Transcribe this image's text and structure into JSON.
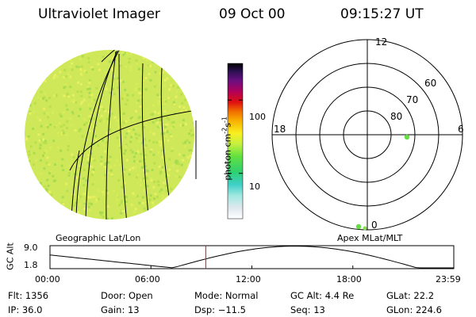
{
  "header": {
    "instrument": "Ultraviolet Imager",
    "date": "09 Oct 00",
    "time": "09:15:27 UT"
  },
  "colorbar": {
    "label": "photon cm",
    "label_sup1": "-2",
    "label_mid": "s",
    "label_sup2": "-1",
    "ticks": [
      {
        "value": 100,
        "label": "100"
      },
      {
        "value": 10,
        "label": "10"
      }
    ],
    "scale": "log"
  },
  "polar_plot": {
    "mlt_labels": {
      "top": "12",
      "left": "18",
      "right": "6",
      "bottom": "0"
    },
    "lat_labels": [
      "60",
      "70",
      "80"
    ]
  },
  "frames": {
    "left_label": "Geographic Lat/Lon",
    "right_label": "Apex MLat/MLT"
  },
  "altitude_plot": {
    "ylabel": "GC Alt",
    "ytick_top": "9.0",
    "ytick_bottom": "1.8",
    "xticks": [
      "00:00",
      "06:00",
      "12:00",
      "18:00",
      "23:59"
    ],
    "current_time_hours": 9.26
  },
  "info": {
    "flt_label": "Flt:",
    "flt_value": "1356",
    "door_label": "Door:",
    "door_value": "Open",
    "mode_label": "Mode:",
    "mode_value": "Normal",
    "gcalt_label": "GC Alt:",
    "gcalt_value": "4.4 Re",
    "glat_label": "GLat:",
    "glat_value": "22.2",
    "ip_label": "IP:",
    "ip_value": "36.0",
    "gain_label": "Gain:",
    "gain_value": "13",
    "dsp_label": "Dsp:",
    "dsp_value": "−11.5",
    "seq_label": "Seq:",
    "seq_value": "13",
    "glon_label": "GLon:",
    "glon_value": "224.6"
  },
  "colors": {
    "earth_base": "#cfe85a",
    "earth_speckle_a": "#e8f060",
    "earth_speckle_b": "#a8dc50",
    "marker_green": "#66dd44",
    "time_marker": "#ff0000"
  }
}
